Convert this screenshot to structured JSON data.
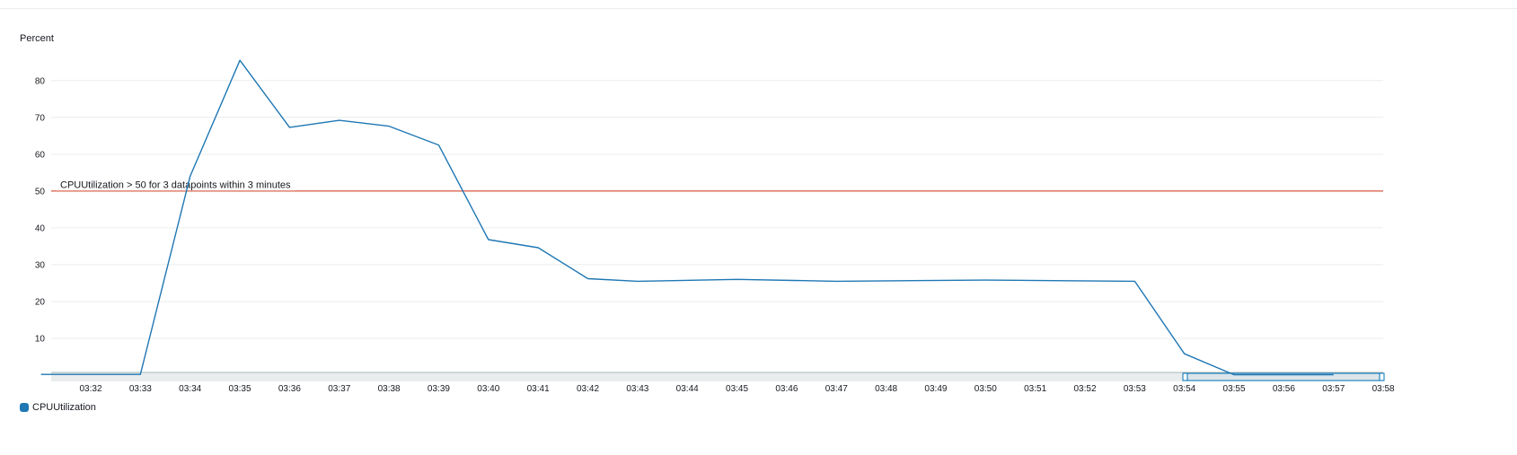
{
  "chart_data": {
    "type": "line",
    "ylabel": "Percent",
    "ylim": [
      0,
      85
    ],
    "y_ticks": [
      10,
      20,
      30,
      40,
      50,
      60,
      70,
      80
    ],
    "x_range": [
      "03:31",
      "03:58"
    ],
    "x_ticks": [
      "03:32",
      "03:33",
      "03:34",
      "03:35",
      "03:36",
      "03:37",
      "03:38",
      "03:39",
      "03:40",
      "03:41",
      "03:42",
      "03:43",
      "03:44",
      "03:45",
      "03:46",
      "03:47",
      "03:48",
      "03:49",
      "03:50",
      "03:51",
      "03:52",
      "03:53",
      "03:54",
      "03:55",
      "03:56",
      "03:57",
      "03:58"
    ],
    "grid": true,
    "legend_position": "bottom-left",
    "series": [
      {
        "name": "CPUUtilization",
        "color": "#1f77b4",
        "points": [
          {
            "x": "03:31",
            "y": 0.2
          },
          {
            "x": "03:33",
            "y": 0.2
          },
          {
            "x": "03:34",
            "y": 54
          },
          {
            "x": "03:35",
            "y": 85.5
          },
          {
            "x": "03:36",
            "y": 67.3
          },
          {
            "x": "03:37",
            "y": 69.2
          },
          {
            "x": "03:38",
            "y": 67.6
          },
          {
            "x": "03:39",
            "y": 62.5
          },
          {
            "x": "03:40",
            "y": 36.8
          },
          {
            "x": "03:41",
            "y": 34.6
          },
          {
            "x": "03:42",
            "y": 26.2
          },
          {
            "x": "03:43",
            "y": 25.5
          },
          {
            "x": "03:45",
            "y": 26
          },
          {
            "x": "03:47",
            "y": 25.5
          },
          {
            "x": "03:50",
            "y": 25.8
          },
          {
            "x": "03:53",
            "y": 25.5
          },
          {
            "x": "03:54",
            "y": 5.8
          },
          {
            "x": "03:55",
            "y": 0.1
          },
          {
            "x": "03:57",
            "y": 0.1
          }
        ]
      }
    ],
    "threshold": {
      "value": 50,
      "label": "CPUUtilization > 50 for 3 datapoints within 3 minutes",
      "color": "#d13212"
    }
  }
}
